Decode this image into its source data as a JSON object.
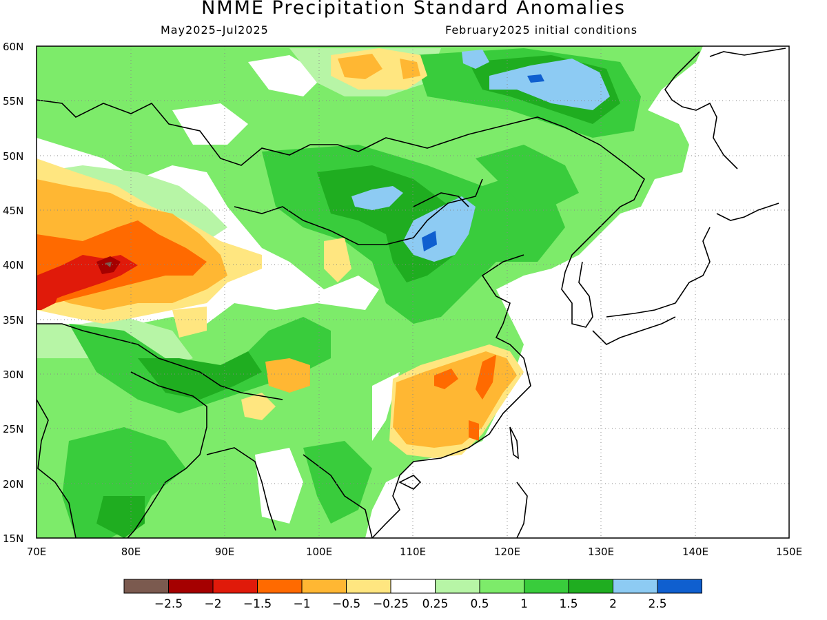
{
  "title": "NMME Precipitation Standard Anomalies",
  "subtitle_left": "May2025–Jul2025",
  "subtitle_right": "February2025 initial conditions",
  "map": {
    "lon_range": [
      70,
      150
    ],
    "lat_range": [
      15,
      60
    ],
    "lat_ticks": [
      "60N",
      "55N",
      "50N",
      "45N",
      "40N",
      "35N",
      "30N",
      "25N",
      "20N",
      "15N"
    ],
    "lon_ticks": [
      "70E",
      "80E",
      "90E",
      "100E",
      "110E",
      "120E",
      "130E",
      "140E",
      "150E"
    ],
    "grid_lines": "dotted"
  },
  "colorbar": {
    "colors": [
      "#7b5a4f",
      "#a50000",
      "#e01a0a",
      "#ff6a00",
      "#ffb733",
      "#ffe680",
      "#ffffff",
      "#b7f5a6",
      "#7deb6a",
      "#39cc3c",
      "#1fad20",
      "#8dcbf3",
      "#0f5fcf"
    ],
    "labels": [
      "−2.5",
      "−2",
      "−1.5",
      "−1",
      "−0.5",
      "−0.25",
      "0.25",
      "0.5",
      "1",
      "1.5",
      "2",
      "2.5"
    ]
  }
}
